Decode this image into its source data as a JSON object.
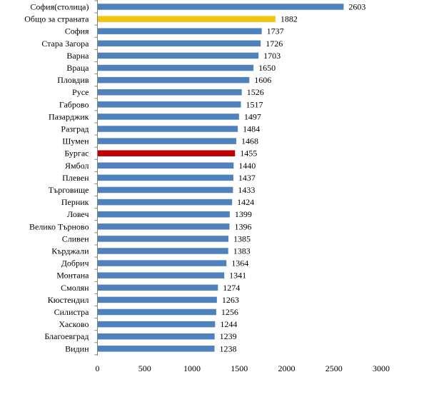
{
  "chart_data": {
    "type": "bar",
    "orientation": "horizontal",
    "title": "",
    "xlabel": "",
    "ylabel": "",
    "xlim": [
      0,
      3000
    ],
    "x_ticks": [
      0,
      500,
      1000,
      1500,
      2000,
      2500,
      3000
    ],
    "grid": false,
    "legend": "none",
    "colors": {
      "default": "#4f81bd",
      "highlight_country": "#f2c40f",
      "highlight_burgas": "#c00000"
    },
    "categories": [
      "София(столица)",
      "Общо за страната",
      "София",
      "Стара Загора",
      "Варна",
      "Враца",
      "Пловдив",
      "Русе",
      "Габрово",
      "Пазарджик",
      "Разград",
      "Шумен",
      "Бургас",
      "Ямбол",
      "Плевен",
      "Търговище",
      "Перник",
      "Ловеч",
      "Велико Търново",
      "Сливен",
      "Кърджали",
      "Добрич",
      "Монтана",
      "Смолян",
      "Кюстендил",
      "Силистра",
      "Хасково",
      "Благоевград",
      "Видин"
    ],
    "values": [
      2603,
      1882,
      1737,
      1726,
      1703,
      1650,
      1606,
      1526,
      1517,
      1497,
      1484,
      1468,
      1455,
      1440,
      1437,
      1433,
      1424,
      1399,
      1396,
      1385,
      1383,
      1364,
      1341,
      1274,
      1263,
      1256,
      1244,
      1239,
      1238
    ],
    "bar_color_keys": [
      "default",
      "highlight_country",
      "default",
      "default",
      "default",
      "default",
      "default",
      "default",
      "default",
      "default",
      "default",
      "default",
      "highlight_burgas",
      "default",
      "default",
      "default",
      "default",
      "default",
      "default",
      "default",
      "default",
      "default",
      "default",
      "default",
      "default",
      "default",
      "default",
      "default",
      "default"
    ]
  }
}
